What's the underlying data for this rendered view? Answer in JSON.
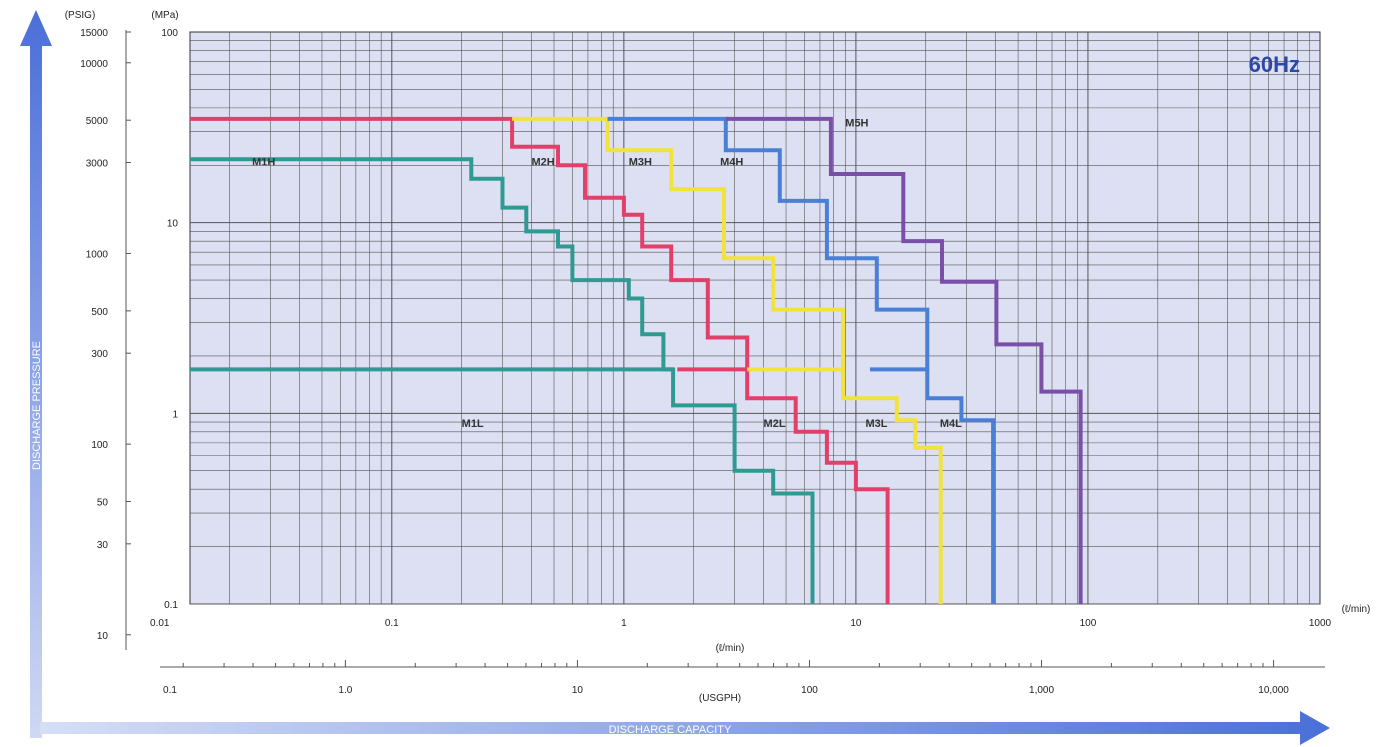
{
  "chart_data": {
    "type": "line",
    "step": true,
    "badge": "60Hz",
    "xscale": "log",
    "yscale": "log",
    "xlim": [
      0.0135,
      1000
    ],
    "ylim": [
      0.1,
      100
    ],
    "grid": true,
    "axes": {
      "y_title": "DISCHARGE PRESSURE",
      "x_title": "DISCHARGE CAPACITY",
      "y_mpa_unit": "(MPa)",
      "y_psig_unit": "(PSIG)",
      "x_lmin_unit": "(ℓ/min)",
      "x_lmin_unit_right": "(ℓ/min)",
      "x_usgph_unit": "(USGPH)"
    },
    "ticks": {
      "y_mpa": [
        {
          "label": "100",
          "value": 100
        },
        {
          "label": "10",
          "value": 10
        },
        {
          "label": "1",
          "value": 1
        },
        {
          "label": "0.1",
          "value": 0.1
        }
      ],
      "y_psig": [
        {
          "label": "15000",
          "value": 100
        },
        {
          "label": "10000",
          "value": 68.95
        },
        {
          "label": "5000",
          "value": 34.47
        },
        {
          "label": "3000",
          "value": 20.68
        },
        {
          "label": "1000",
          "value": 6.895
        },
        {
          "label": "500",
          "value": 3.447
        },
        {
          "label": "300",
          "value": 2.068
        },
        {
          "label": "100",
          "value": 0.6895
        },
        {
          "label": "50",
          "value": 0.3447
        },
        {
          "label": "30",
          "value": 0.2068
        },
        {
          "label": "10",
          "value": 0.06895
        }
      ],
      "x_lmin": [
        {
          "label": "0.01",
          "value": 0.01
        },
        {
          "label": "0.1",
          "value": 0.1
        },
        {
          "label": "1",
          "value": 1
        },
        {
          "label": "10",
          "value": 10
        },
        {
          "label": "100",
          "value": 100
        },
        {
          "label": "1000",
          "value": 1000
        }
      ],
      "x_usgph": [
        {
          "label": "0.1",
          "value": 0.1
        },
        {
          "label": "1.0",
          "value": 1.0
        },
        {
          "label": "10",
          "value": 10
        },
        {
          "label": "100",
          "value": 100
        },
        {
          "label": "1,000",
          "value": 1000
        },
        {
          "label": "10,000",
          "value": 10000
        }
      ]
    },
    "series": [
      {
        "name": "M1H",
        "color": "#2e9a92",
        "label_at": [
          0.025,
          20
        ],
        "points": [
          [
            0.0135,
            21.5
          ],
          [
            0.22,
            21.5
          ],
          [
            0.22,
            17
          ],
          [
            0.3,
            17
          ],
          [
            0.3,
            12
          ],
          [
            0.38,
            12
          ],
          [
            0.38,
            9
          ],
          [
            0.52,
            9
          ],
          [
            0.52,
            7.5
          ],
          [
            0.6,
            7.5
          ],
          [
            0.6,
            5
          ],
          [
            1.05,
            5
          ],
          [
            1.05,
            4
          ],
          [
            1.2,
            4
          ],
          [
            1.2,
            2.6
          ],
          [
            1.48,
            2.6
          ],
          [
            1.48,
            1.7
          ],
          [
            1.63,
            1.7
          ]
        ]
      },
      {
        "name": "M1L",
        "color": "#2e9a92",
        "label_at": [
          0.2,
          0.85
        ],
        "points": [
          [
            0.0135,
            1.7
          ],
          [
            1.63,
            1.7
          ],
          [
            1.63,
            1.1
          ],
          [
            3.0,
            1.1
          ],
          [
            3.0,
            0.5
          ],
          [
            4.4,
            0.5
          ],
          [
            4.4,
            0.38
          ],
          [
            6.5,
            0.38
          ],
          [
            6.5,
            0.1
          ]
        ]
      },
      {
        "name": "M2H",
        "color": "#e23f6a",
        "label_at": [
          0.4,
          20
        ],
        "points": [
          [
            0.0135,
            35
          ],
          [
            0.33,
            35
          ],
          [
            0.33,
            25
          ],
          [
            0.52,
            25
          ],
          [
            0.52,
            20
          ],
          [
            0.68,
            20
          ],
          [
            0.68,
            13.5
          ],
          [
            1.0,
            13.5
          ],
          [
            1.0,
            11
          ],
          [
            1.2,
            11
          ],
          [
            1.2,
            7.5
          ],
          [
            1.6,
            7.5
          ],
          [
            1.6,
            5
          ],
          [
            2.3,
            5
          ],
          [
            2.3,
            2.5
          ],
          [
            3.4,
            2.5
          ],
          [
            3.4,
            1.7
          ],
          [
            1.7,
            1.7
          ]
        ]
      },
      {
        "name": "M2L",
        "color": "#e23f6a",
        "label_at": [
          4.0,
          0.85
        ],
        "points": [
          [
            3.4,
            1.7
          ],
          [
            3.4,
            1.2
          ],
          [
            5.5,
            1.2
          ],
          [
            5.5,
            0.8
          ],
          [
            7.5,
            0.8
          ],
          [
            7.5,
            0.55
          ],
          [
            10,
            0.55
          ],
          [
            10,
            0.4
          ],
          [
            13.7,
            0.4
          ],
          [
            13.7,
            0.1
          ]
        ]
      },
      {
        "name": "M3H",
        "color": "#f2e33c",
        "label_at": [
          1.05,
          20
        ],
        "points": [
          [
            0.33,
            35
          ],
          [
            0.85,
            35
          ],
          [
            0.85,
            24
          ],
          [
            1.6,
            24
          ],
          [
            1.6,
            15
          ],
          [
            2.7,
            15
          ],
          [
            2.7,
            6.5
          ],
          [
            4.4,
            6.5
          ],
          [
            4.4,
            3.5
          ],
          [
            8.8,
            3.5
          ],
          [
            8.8,
            1.7
          ],
          [
            3.4,
            1.7
          ]
        ]
      },
      {
        "name": "M3L",
        "color": "#f2e33c",
        "label_at": [
          11,
          0.85
        ],
        "points": [
          [
            8.8,
            1.7
          ],
          [
            8.8,
            1.2
          ],
          [
            15,
            1.2
          ],
          [
            15,
            0.92
          ],
          [
            18,
            0.92
          ],
          [
            18,
            0.66
          ],
          [
            23.2,
            0.66
          ],
          [
            23.2,
            0.1
          ]
        ]
      },
      {
        "name": "M4H",
        "color": "#4a7fd6",
        "label_at": [
          2.6,
          20
        ],
        "points": [
          [
            0.85,
            35
          ],
          [
            2.75,
            35
          ],
          [
            2.75,
            24
          ],
          [
            4.7,
            24
          ],
          [
            4.7,
            13
          ],
          [
            7.5,
            13
          ],
          [
            7.5,
            6.5
          ],
          [
            12.3,
            6.5
          ],
          [
            12.3,
            3.5
          ],
          [
            20.3,
            3.5
          ],
          [
            20.3,
            1.7
          ],
          [
            11.5,
            1.7
          ]
        ]
      },
      {
        "name": "M4L",
        "color": "#4a7fd6",
        "label_at": [
          23,
          0.85
        ],
        "points": [
          [
            20.3,
            1.7
          ],
          [
            20.3,
            1.2
          ],
          [
            28.5,
            1.2
          ],
          [
            28.5,
            0.92
          ],
          [
            39,
            0.92
          ],
          [
            39,
            0.1
          ]
        ]
      },
      {
        "name": "M5H",
        "color": "#7a4fa8",
        "label_at": [
          9,
          32
        ],
        "points": [
          [
            2.75,
            35
          ],
          [
            7.8,
            35
          ],
          [
            7.8,
            18
          ],
          [
            16,
            18
          ],
          [
            16,
            8
          ],
          [
            23.5,
            8
          ],
          [
            23.5,
            4.9
          ],
          [
            40.3,
            4.9
          ],
          [
            40.3,
            2.3
          ],
          [
            63,
            2.3
          ],
          [
            63,
            1.3
          ],
          [
            93,
            1.3
          ],
          [
            93,
            0.1
          ]
        ]
      }
    ]
  }
}
